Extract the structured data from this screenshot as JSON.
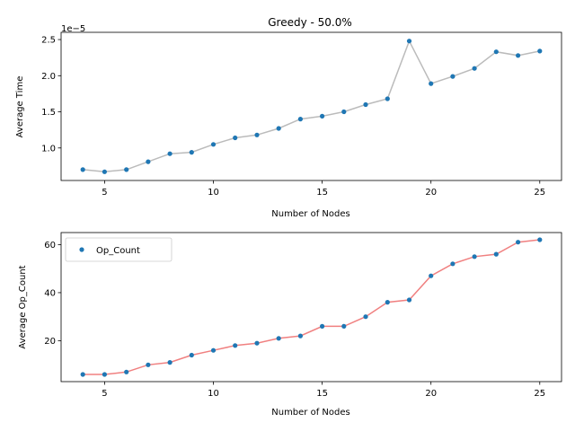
{
  "chart_data": [
    {
      "type": "scatter",
      "title": "Greedy - 50.0%",
      "xlabel": "Number of Nodes",
      "ylabel": "Average Time",
      "offset_text": "1e−5",
      "xlim": [
        3,
        26
      ],
      "ylim": [
        0.55,
        2.6
      ],
      "x_ticks": [
        5,
        10,
        15,
        20,
        25
      ],
      "x_tick_labels": [
        "5",
        "10",
        "15",
        "20",
        "25"
      ],
      "y_ticks": [
        1.0,
        1.5,
        2.0,
        2.5
      ],
      "y_tick_labels": [
        "1.0",
        "1.5",
        "2.0",
        "2.5"
      ],
      "grid": false,
      "legend": "none",
      "marker_color": "#1f77b4",
      "line_color": "#bbbbbb",
      "x": [
        4,
        5,
        6,
        7,
        8,
        9,
        10,
        11,
        12,
        13,
        14,
        15,
        16,
        17,
        18,
        19,
        20,
        21,
        22,
        23,
        24,
        25
      ],
      "values": [
        0.7,
        0.67,
        0.7,
        0.81,
        0.92,
        0.94,
        1.05,
        1.14,
        1.18,
        1.27,
        1.4,
        1.44,
        1.5,
        1.6,
        1.68,
        2.48,
        1.89,
        1.99,
        2.1,
        2.33,
        2.28,
        2.34
      ]
    },
    {
      "type": "scatter",
      "title": "",
      "xlabel": "Number of Nodes",
      "ylabel": "Average Op_Count",
      "xlim": [
        3,
        26
      ],
      "ylim": [
        3,
        65
      ],
      "x_ticks": [
        5,
        10,
        15,
        20,
        25
      ],
      "x_tick_labels": [
        "5",
        "10",
        "15",
        "20",
        "25"
      ],
      "y_ticks": [
        20,
        40,
        60
      ],
      "y_tick_labels": [
        "20",
        "40",
        "60"
      ],
      "grid": false,
      "legend": "top-left",
      "legend_entries": [
        "Op_Count"
      ],
      "marker_color": "#1f77b4",
      "line_color": "#f08080",
      "series": [
        {
          "name": "Op_Count",
          "x": [
            4,
            5,
            6,
            7,
            8,
            9,
            10,
            11,
            12,
            13,
            14,
            15,
            16,
            17,
            18,
            19,
            20,
            21,
            22,
            23,
            24,
            25
          ],
          "values": [
            6,
            6,
            7,
            10,
            11,
            14,
            16,
            18,
            19,
            21,
            22,
            26,
            26,
            30,
            36,
            37,
            47,
            52,
            55,
            56,
            61,
            62
          ]
        }
      ]
    }
  ]
}
